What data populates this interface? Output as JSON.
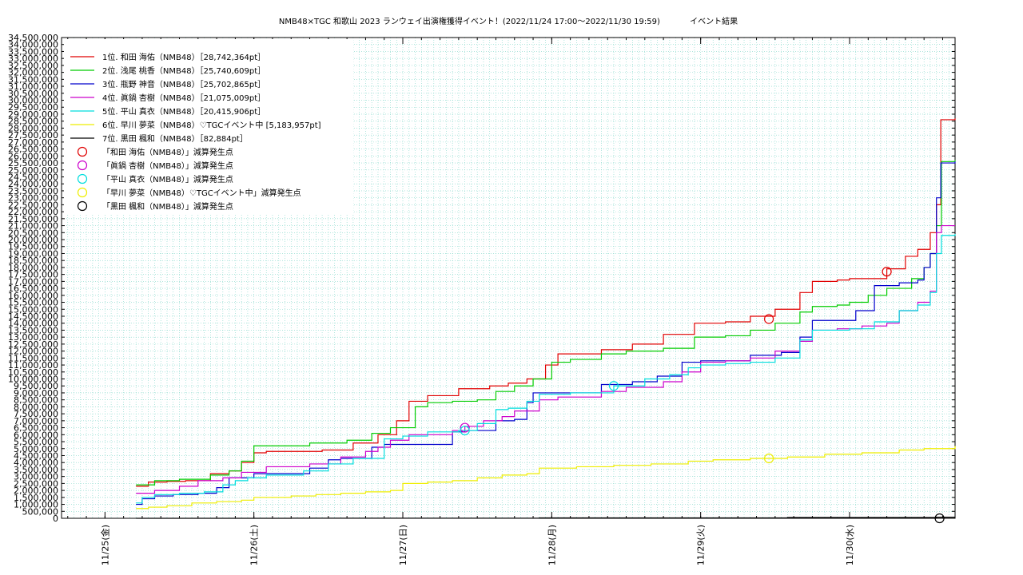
{
  "chart_data": {
    "type": "line",
    "title": "NMB48×TGC 和歌山 2023 ランウェイ出演権獲得イベント！(2022/11/24 17:00～2022/11/30 19:59)",
    "subtitle": "イベント結果",
    "xlabel": "",
    "ylabel": "",
    "x_unit": "hours since 2022/11/25 00:00",
    "xlim": [
      -7,
      137
    ],
    "ylim": [
      0,
      34500000
    ],
    "y_tick_step": 500000,
    "y_tick_labels": [
      "0",
      "500,000",
      "1,000,000",
      "1,500,000",
      "2,000,000",
      "2,500,000",
      "3,000,000",
      "3,500,000",
      "4,000,000",
      "4,500,000",
      "5,000,000",
      "5,500,000",
      "6,000,000",
      "6,500,000",
      "7,000,000",
      "7,500,000",
      "8,000,000",
      "8,500,000",
      "9,000,000",
      "9,500,000",
      "10,000,000",
      "10,500,000",
      "11,000,000",
      "11,500,000",
      "12,000,000",
      "12,500,000",
      "13,000,000",
      "13,500,000",
      "14,000,000",
      "14,500,000",
      "15,000,000",
      "15,500,000",
      "16,000,000",
      "16,500,000",
      "17,000,000",
      "17,500,000",
      "18,000,000",
      "18,500,000",
      "19,000,000",
      "19,500,000",
      "20,000,000",
      "20,500,000",
      "21,000,000",
      "21,500,000",
      "22,000,000",
      "22,500,000",
      "23,000,000",
      "23,500,000",
      "24,000,000",
      "24,500,000",
      "25,000,000",
      "25,500,000",
      "26,000,000",
      "26,500,000",
      "27,000,000",
      "27,500,000",
      "28,000,000",
      "28,500,000",
      "29,000,000",
      "29,500,000",
      "30,000,000",
      "30,500,000",
      "31,000,000",
      "31,500,000",
      "32,000,000",
      "32,500,000",
      "33,000,000",
      "33,500,000",
      "34,000,000",
      "34,500,000"
    ],
    "x_ticks": [
      {
        "x": 0,
        "label": "11/25(金)"
      },
      {
        "x": 24,
        "label": "11/26(土)"
      },
      {
        "x": 48,
        "label": "11/27(日)"
      },
      {
        "x": 72,
        "label": "11/28(月)"
      },
      {
        "x": 96,
        "label": "11/29(火)"
      },
      {
        "x": 120,
        "label": "11/30(水)"
      }
    ],
    "grid": true,
    "legend_position": "top-left",
    "series": [
      {
        "name": "1位. 和田 海佑（NMB48）［28,742,364pt］",
        "color": "#e00000",
        "points": [
          [
            5,
            2300000
          ],
          [
            7,
            2600000
          ],
          [
            10,
            2650000
          ],
          [
            13,
            2700000
          ],
          [
            17,
            3200000
          ],
          [
            20,
            3400000
          ],
          [
            22,
            4000000
          ],
          [
            24,
            4700000
          ],
          [
            26,
            4800000
          ],
          [
            30,
            4800000
          ],
          [
            35,
            4900000
          ],
          [
            40,
            5400000
          ],
          [
            44,
            6000000
          ],
          [
            47,
            7000000
          ],
          [
            49,
            8400000
          ],
          [
            52,
            8800000
          ],
          [
            57,
            9300000
          ],
          [
            62,
            9500000
          ],
          [
            65,
            9700000
          ],
          [
            68,
            10000000
          ],
          [
            71,
            11000000
          ],
          [
            73,
            11800000
          ],
          [
            80,
            12100000
          ],
          [
            85,
            12500000
          ],
          [
            90,
            13200000
          ],
          [
            95,
            14000000
          ],
          [
            100,
            14100000
          ],
          [
            104,
            14500000
          ],
          [
            108,
            15000000
          ],
          [
            112,
            16200000
          ],
          [
            114,
            17000000
          ],
          [
            118,
            17100000
          ],
          [
            120,
            17200000
          ],
          [
            126,
            17900000
          ],
          [
            129,
            18800000
          ],
          [
            131,
            19300000
          ],
          [
            133,
            20500000
          ],
          [
            134,
            22500000
          ],
          [
            134.7,
            28600000
          ],
          [
            137,
            28700000
          ]
        ]
      },
      {
        "name": "2位. 浅尾 桃香（NMB48）［25,740,609pt］",
        "color": "#00cc00",
        "points": [
          [
            5,
            2400000
          ],
          [
            8,
            2700000
          ],
          [
            12,
            2800000
          ],
          [
            17,
            3100000
          ],
          [
            20,
            3400000
          ],
          [
            22,
            4100000
          ],
          [
            24,
            5200000
          ],
          [
            28,
            5200000
          ],
          [
            33,
            5400000
          ],
          [
            39,
            5600000
          ],
          [
            43,
            6100000
          ],
          [
            46,
            6500000
          ],
          [
            50,
            8000000
          ],
          [
            52,
            8300000
          ],
          [
            56,
            8400000
          ],
          [
            60,
            8500000
          ],
          [
            63,
            9100000
          ],
          [
            66,
            9500000
          ],
          [
            69,
            10000000
          ],
          [
            72,
            11200000
          ],
          [
            75,
            11400000
          ],
          [
            80,
            11800000
          ],
          [
            84,
            12000000
          ],
          [
            90,
            12200000
          ],
          [
            95,
            13000000
          ],
          [
            100,
            13100000
          ],
          [
            104,
            13500000
          ],
          [
            108,
            14000000
          ],
          [
            112,
            14800000
          ],
          [
            114,
            15200000
          ],
          [
            118,
            15300000
          ],
          [
            120,
            15500000
          ],
          [
            123,
            16000000
          ],
          [
            126,
            16500000
          ],
          [
            130,
            17200000
          ],
          [
            132,
            18000000
          ],
          [
            133,
            19000000
          ],
          [
            134,
            21000000
          ],
          [
            134.8,
            25600000
          ],
          [
            137,
            25700000
          ]
        ]
      },
      {
        "name": "3位. 瓶野 神音（NMB48）［25,702,865pt］",
        "color": "#0000cc",
        "points": [
          [
            5,
            1000000
          ],
          [
            6,
            1400000
          ],
          [
            8,
            1600000
          ],
          [
            11,
            1700000
          ],
          [
            15,
            1800000
          ],
          [
            18,
            2200000
          ],
          [
            20,
            2900000
          ],
          [
            24,
            3200000
          ],
          [
            29,
            3200000
          ],
          [
            33,
            3600000
          ],
          [
            36,
            4200000
          ],
          [
            38,
            4300000
          ],
          [
            43,
            5100000
          ],
          [
            45,
            5300000
          ],
          [
            48,
            5300000
          ],
          [
            52,
            5300000
          ],
          [
            56,
            6200000
          ],
          [
            58,
            6300000
          ],
          [
            61,
            6300000
          ],
          [
            63,
            7000000
          ],
          [
            66,
            7100000
          ],
          [
            68,
            8300000
          ],
          [
            69,
            9000000
          ],
          [
            75,
            9000000
          ],
          [
            80,
            9600000
          ],
          [
            85,
            9800000
          ],
          [
            89,
            10200000
          ],
          [
            93,
            11200000
          ],
          [
            96,
            11300000
          ],
          [
            100,
            11300000
          ],
          [
            104,
            11700000
          ],
          [
            109,
            11900000
          ],
          [
            112,
            13000000
          ],
          [
            114,
            14200000
          ],
          [
            119,
            14200000
          ],
          [
            121,
            14900000
          ],
          [
            124,
            16700000
          ],
          [
            128,
            16900000
          ],
          [
            131,
            17100000
          ],
          [
            132,
            18000000
          ],
          [
            133,
            19000000
          ],
          [
            134,
            23000000
          ],
          [
            134.7,
            25500000
          ],
          [
            137,
            25600000
          ]
        ]
      },
      {
        "name": "4位. 眞鍋 杏樹（NMB48）［21,075,009pt］",
        "color": "#cc00cc",
        "points": [
          [
            5,
            1800000
          ],
          [
            8,
            2000000
          ],
          [
            12,
            2300000
          ],
          [
            15,
            2700000
          ],
          [
            19,
            2900000
          ],
          [
            22,
            3300000
          ],
          [
            26,
            3700000
          ],
          [
            30,
            3700000
          ],
          [
            33,
            3900000
          ],
          [
            38,
            4400000
          ],
          [
            42,
            4800000
          ],
          [
            44,
            5100000
          ],
          [
            46,
            5600000
          ],
          [
            49,
            6000000
          ],
          [
            52,
            6000000
          ],
          [
            56,
            6300000
          ],
          [
            58,
            6600000
          ],
          [
            61,
            7000000
          ],
          [
            64,
            7300000
          ],
          [
            66,
            7700000
          ],
          [
            70,
            8500000
          ],
          [
            73,
            8700000
          ],
          [
            80,
            9100000
          ],
          [
            84,
            9400000
          ],
          [
            90,
            9800000
          ],
          [
            93,
            10500000
          ],
          [
            96,
            11200000
          ],
          [
            100,
            11300000
          ],
          [
            104,
            11500000
          ],
          [
            108,
            12000000
          ],
          [
            112,
            12700000
          ],
          [
            114,
            13500000
          ],
          [
            118,
            13600000
          ],
          [
            122,
            13800000
          ],
          [
            126,
            14000000
          ],
          [
            128,
            14900000
          ],
          [
            131,
            15500000
          ],
          [
            133,
            16300000
          ],
          [
            134,
            20500000
          ],
          [
            134.8,
            21000000
          ],
          [
            137,
            21000000
          ]
        ]
      },
      {
        "name": "5位. 平山 真衣（NMB48）［20,415,906pt］",
        "color": "#00dddd",
        "points": [
          [
            5,
            1100000
          ],
          [
            6,
            1500000
          ],
          [
            8,
            1700000
          ],
          [
            12,
            1800000
          ],
          [
            16,
            1900000
          ],
          [
            19,
            2400000
          ],
          [
            21,
            2700000
          ],
          [
            23,
            2900000
          ],
          [
            26,
            3100000
          ],
          [
            29,
            3100000
          ],
          [
            32,
            3400000
          ],
          [
            36,
            3900000
          ],
          [
            40,
            4300000
          ],
          [
            45,
            5700000
          ],
          [
            48,
            5900000
          ],
          [
            52,
            6200000
          ],
          [
            57,
            6300000
          ],
          [
            60,
            6800000
          ],
          [
            63,
            7800000
          ],
          [
            65,
            7900000
          ],
          [
            68,
            8400000
          ],
          [
            70,
            8900000
          ],
          [
            75,
            9000000
          ],
          [
            82,
            9500000
          ],
          [
            87,
            10000000
          ],
          [
            91,
            10300000
          ],
          [
            94,
            10800000
          ],
          [
            96,
            11000000
          ],
          [
            100,
            11100000
          ],
          [
            104,
            11200000
          ],
          [
            108,
            11500000
          ],
          [
            112,
            12800000
          ],
          [
            114,
            13500000
          ],
          [
            120,
            13600000
          ],
          [
            124,
            14100000
          ],
          [
            128,
            14900000
          ],
          [
            131,
            15300000
          ],
          [
            133,
            16200000
          ],
          [
            134,
            19000000
          ],
          [
            134.8,
            20300000
          ],
          [
            137,
            20400000
          ]
        ]
      },
      {
        "name": "6位. 早川 夢菜（NMB48）♡TGCイベント中 [5,183,957pt]",
        "color": "#eeee00",
        "points": [
          [
            5,
            700000
          ],
          [
            7,
            800000
          ],
          [
            10,
            900000
          ],
          [
            14,
            1100000
          ],
          [
            18,
            1200000
          ],
          [
            22,
            1300000
          ],
          [
            24,
            1500000
          ],
          [
            30,
            1600000
          ],
          [
            34,
            1700000
          ],
          [
            38,
            1800000
          ],
          [
            42,
            1900000
          ],
          [
            46,
            2000000
          ],
          [
            48,
            2500000
          ],
          [
            52,
            2600000
          ],
          [
            56,
            2700000
          ],
          [
            60,
            2900000
          ],
          [
            64,
            3100000
          ],
          [
            68,
            3200000
          ],
          [
            70,
            3600000
          ],
          [
            76,
            3700000
          ],
          [
            82,
            3800000
          ],
          [
            88,
            3900000
          ],
          [
            94,
            4100000
          ],
          [
            98,
            4200000
          ],
          [
            104,
            4300000
          ],
          [
            110,
            4400000
          ],
          [
            116,
            4600000
          ],
          [
            122,
            4700000
          ],
          [
            128,
            4900000
          ],
          [
            132,
            5000000
          ],
          [
            137,
            5180000
          ]
        ]
      },
      {
        "name": "7位. 黒田 楓和（NMB48）［82,884pt］",
        "color": "#000000",
        "points": [
          [
            5,
            0
          ],
          [
            30,
            10000
          ],
          [
            70,
            30000
          ],
          [
            110,
            60000
          ],
          [
            134,
            80000
          ],
          [
            137,
            82884
          ]
        ]
      }
    ],
    "markers": [
      {
        "name": "「和田 海佑（NMB48）」減算発生点",
        "color": "#e00000",
        "points": [
          [
            107,
            14300000
          ],
          [
            126,
            17700000
          ]
        ]
      },
      {
        "name": "「眞鍋 杏樹（NMB48）」減算発生点",
        "color": "#cc00cc",
        "points": [
          [
            58,
            6500000
          ]
        ]
      },
      {
        "name": "「平山 真衣（NMB48）」減算発生点",
        "color": "#00dddd",
        "points": [
          [
            58,
            6300000
          ],
          [
            82,
            9500000
          ]
        ]
      },
      {
        "name": "「早川 夢菜（NMB48）♡TGCイベント中」減算発生点",
        "color": "#eeee00",
        "points": [
          [
            107,
            4300000
          ]
        ]
      },
      {
        "name": "「黒田 楓和（NMB48）」減算発生点",
        "color": "#000000",
        "points": [
          [
            134.5,
            0
          ]
        ]
      }
    ]
  }
}
